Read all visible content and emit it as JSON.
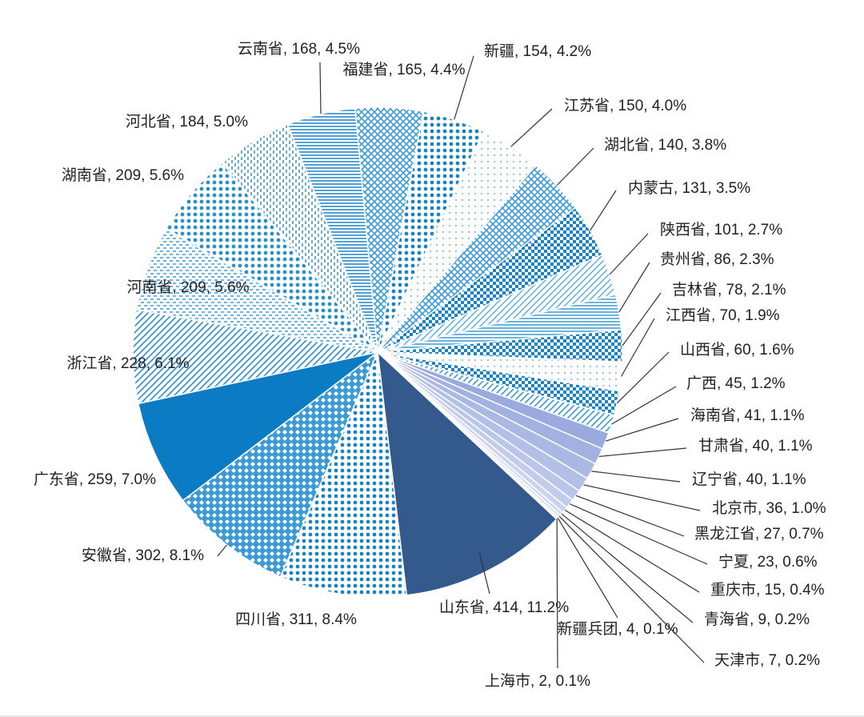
{
  "chart_data": {
    "type": "pie",
    "values": [
      414,
      311,
      302,
      259,
      228,
      209,
      209,
      184,
      168,
      165,
      154,
      150,
      140,
      131,
      101,
      86,
      78,
      70,
      60,
      45,
      41,
      40,
      40,
      36,
      27,
      23,
      15,
      9,
      7,
      4,
      2
    ],
    "value_labels": [
      "山东省, 414, 11.2%",
      "四川省, 311, 8.4%",
      "安徽省, 302, 8.1%",
      "广东省, 259, 7.0%",
      "浙江省, 228, 6.1%",
      "河南省, 209, 5.6%",
      "湖南省, 209, 5.6%",
      "河北省, 184, 5.0%",
      "云南省, 168, 4.5%",
      "福建省, 165, 4.4%",
      "新疆, 154, 4.2%",
      "江苏省, 150, 4.0%",
      "湖北省, 140, 3.8%",
      "内蒙古, 131, 3.5%",
      "陕西省, 101, 2.7%",
      "贵州省, 86, 2.3%",
      "吉林省, 78, 2.1%",
      "江西省, 70, 1.9%",
      "山西省, 60, 1.6%",
      "广西, 45, 1.2%",
      "海南省, 41, 1.1%",
      "甘肃省, 40, 1.1%",
      "辽宁省, 40, 1.1%",
      "北京市, 36, 1.0%",
      "黑龙江省, 27, 0.7%",
      "宁夏, 23, 0.6%",
      "重庆市, 15, 0.4%",
      "青海省, 9, 0.2%",
      "天津市, 7, 0.2%",
      "新疆兵团, 4, 0.1%",
      "上海市, 2, 0.1%"
    ],
    "colors": [
      "#34598c",
      "#1a84c7",
      "#3a9ad3",
      "#0b7cc4",
      "#2a8fcd",
      "#3a9ad3",
      "#2a8fcd",
      "#3a9ad3",
      "#1a84c7",
      "#3a9ad3",
      "#1a84c7",
      "#6ab4e0",
      "#3a9ad3",
      "#1a84c7",
      "#6ab4e0",
      "#3a9ad3",
      "#1a84c7",
      "#6ab4e0",
      "#1a84c7",
      "#3a9ad3",
      "#9aaade",
      "#a2b1e1",
      "#aab8e4",
      "#b2bfe7",
      "#bac5ea",
      "#c2ccec",
      "#cad3ef",
      "#d2d9f2",
      "#dadff4",
      "#e2e6f7",
      "#e9ecf9"
    ]
  }
}
